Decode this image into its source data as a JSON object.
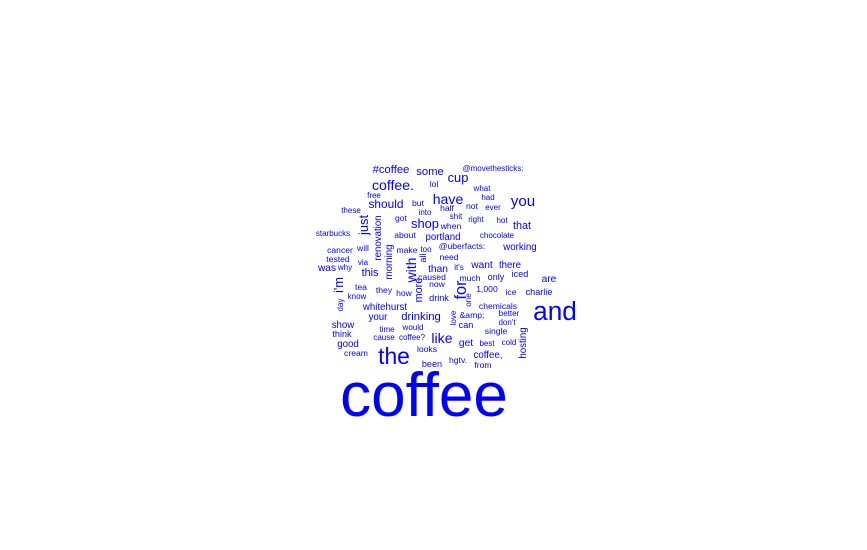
{
  "wordcloud": {
    "color": "#0000ff",
    "words": [
      {
        "text": "coffee",
        "weight": 100
      },
      {
        "text": "and",
        "weight": 44
      },
      {
        "text": "the",
        "weight": 38
      },
      {
        "text": "for",
        "weight": 26
      },
      {
        "text": "you",
        "weight": 24
      },
      {
        "text": "have",
        "weight": 22
      },
      {
        "text": "with",
        "weight": 22
      },
      {
        "text": "like",
        "weight": 22
      },
      {
        "text": "coffee.",
        "weight": 22
      },
      {
        "text": "cup",
        "weight": 20
      },
      {
        "text": "i'm",
        "weight": 20
      },
      {
        "text": "just",
        "weight": 20
      },
      {
        "text": "shop",
        "weight": 20
      },
      {
        "text": "should",
        "weight": 18
      },
      {
        "text": "drinking",
        "weight": 17
      },
      {
        "text": "#coffee",
        "weight": 17
      },
      {
        "text": "some",
        "weight": 17
      },
      {
        "text": "more",
        "weight": 16
      },
      {
        "text": "that",
        "weight": 16
      },
      {
        "text": "this",
        "weight": 16
      },
      {
        "text": "than",
        "weight": 15
      },
      {
        "text": "want",
        "weight": 15
      },
      {
        "text": "get",
        "weight": 15
      },
      {
        "text": "are",
        "weight": 15
      },
      {
        "text": "was",
        "weight": 15
      },
      {
        "text": "morning",
        "weight": 14
      },
      {
        "text": "renovation",
        "weight": 14
      },
      {
        "text": "whitehurst",
        "weight": 14
      },
      {
        "text": "your",
        "weight": 14
      },
      {
        "text": "show",
        "weight": 14
      },
      {
        "text": "good",
        "weight": 14
      },
      {
        "text": "coffee,",
        "weight": 14
      },
      {
        "text": "hosting",
        "weight": 14
      },
      {
        "text": "portland",
        "weight": 14
      },
      {
        "text": "working",
        "weight": 14
      },
      {
        "text": "there",
        "weight": 14
      },
      {
        "text": "charlie",
        "weight": 13
      },
      {
        "text": "only",
        "weight": 13
      },
      {
        "text": "iced",
        "weight": 13
      },
      {
        "text": "all",
        "weight": 13
      },
      {
        "text": "can",
        "weight": 13
      },
      {
        "text": "think",
        "weight": 13
      },
      {
        "text": "drink",
        "weight": 13
      },
      {
        "text": "been",
        "weight": 13
      },
      {
        "text": "chemicals",
        "weight": 12
      },
      {
        "text": "single",
        "weight": 12
      },
      {
        "text": "@uberfacts:",
        "weight": 12
      },
      {
        "text": "about",
        "weight": 12
      },
      {
        "text": "make",
        "weight": 12
      },
      {
        "text": "lol",
        "weight": 12
      },
      {
        "text": "but",
        "weight": 12
      },
      {
        "text": "half",
        "weight": 12
      },
      {
        "text": "not",
        "weight": 12
      },
      {
        "text": "need",
        "weight": 12
      },
      {
        "text": "much",
        "weight": 12
      },
      {
        "text": "ice",
        "weight": 12
      },
      {
        "text": "1,000",
        "weight": 12
      },
      {
        "text": "&amp;",
        "weight": 12
      },
      {
        "text": "how",
        "weight": 12
      },
      {
        "text": "they",
        "weight": 12
      },
      {
        "text": "tea",
        "weight": 12
      },
      {
        "text": "tested",
        "weight": 12
      },
      {
        "text": "cancer",
        "weight": 12
      },
      {
        "text": "will",
        "weight": 12
      },
      {
        "text": "got",
        "weight": 12
      },
      {
        "text": "when",
        "weight": 12
      },
      {
        "text": "caused",
        "weight": 12
      },
      {
        "text": "now",
        "weight": 12
      },
      {
        "text": "looks",
        "weight": 12
      },
      {
        "text": "cream",
        "weight": 12
      },
      {
        "text": "from",
        "weight": 12
      },
      {
        "text": "hgtv.",
        "weight": 12
      },
      {
        "text": "chocolate",
        "weight": 11
      },
      {
        "text": "@movethesticks:",
        "weight": 11
      },
      {
        "text": "what",
        "weight": 11
      },
      {
        "text": "had",
        "weight": 11
      },
      {
        "text": "ever",
        "weight": 11
      },
      {
        "text": "free",
        "weight": 11
      },
      {
        "text": "these",
        "weight": 11
      },
      {
        "text": "into",
        "weight": 11
      },
      {
        "text": "shit",
        "weight": 11
      },
      {
        "text": "right",
        "weight": 11
      },
      {
        "text": "hot",
        "weight": 11
      },
      {
        "text": "starbucks",
        "weight": 11
      },
      {
        "text": "too",
        "weight": 11
      },
      {
        "text": "via",
        "weight": 11
      },
      {
        "text": "why",
        "weight": 11
      },
      {
        "text": "it's",
        "weight": 11
      },
      {
        "text": "day",
        "weight": 11
      },
      {
        "text": "know",
        "weight": 11
      },
      {
        "text": "one",
        "weight": 11
      },
      {
        "text": "love",
        "weight": 11
      },
      {
        "text": "better",
        "weight": 11
      },
      {
        "text": "don't",
        "weight": 11
      },
      {
        "text": "would",
        "weight": 11
      },
      {
        "text": "time",
        "weight": 11
      },
      {
        "text": "cause",
        "weight": 11
      },
      {
        "text": "coffee?",
        "weight": 11
      },
      {
        "text": "best",
        "weight": 11
      },
      {
        "text": "cold",
        "weight": 11
      }
    ]
  }
}
